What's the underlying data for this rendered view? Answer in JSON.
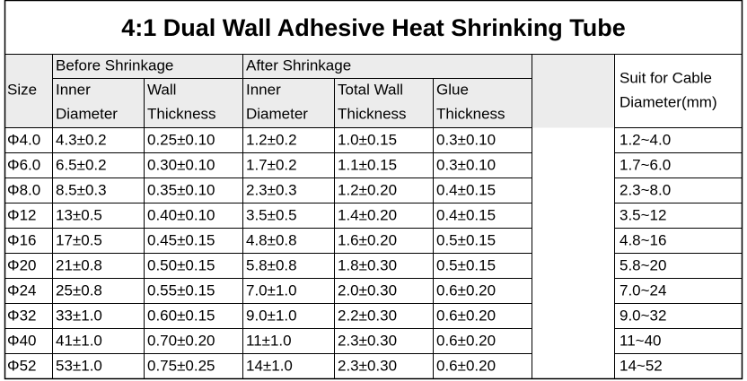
{
  "title": "4:1 Dual Wall Adhesive Heat Shrinking Tube",
  "header": {
    "size": "Size",
    "before": "Before Shrinkage",
    "after": "After Shrinkage",
    "columns": [
      [
        "Inner",
        "Diameter"
      ],
      [
        "Wall",
        "Thickness"
      ],
      [
        "Inner",
        "Diameter"
      ],
      [
        "Total Wall",
        "Thickness"
      ],
      [
        "Glue",
        "Thickness"
      ]
    ],
    "suit": [
      "Suit for Cable",
      "Diameter(mm)"
    ]
  },
  "rows": [
    [
      "Φ4.0",
      "4.3±0.2",
      "0.25±0.10",
      "1.2±0.2",
      "1.0±0.15",
      "0.3±0.10",
      "1.2~4.0"
    ],
    [
      "Φ6.0",
      "6.5±0.2",
      "0.30±0.10",
      "1.7±0.2",
      "1.1±0.15",
      "0.3±0.10",
      "1.7~6.0"
    ],
    [
      "Φ8.0",
      "8.5±0.3",
      "0.35±0.10",
      "2.3±0.3",
      "1.2±0.20",
      "0.4±0.15",
      "2.3~8.0"
    ],
    [
      "Φ12",
      "13±0.5",
      "0.40±0.10",
      "3.5±0.5",
      "1.4±0.20",
      "0.4±0.15",
      "3.5~12"
    ],
    [
      "Φ16",
      "17±0.5",
      "0.45±0.15",
      "4.8±0.8",
      "1.6±0.20",
      "0.5±0.15",
      "4.8~16"
    ],
    [
      "Φ20",
      "21±0.8",
      "0.50±0.15",
      "5.8±0.8",
      "1.8±0.30",
      "0.5±0.15",
      "5.8~20"
    ],
    [
      "Φ24",
      "25±0.8",
      "0.55±0.15",
      "7.0±1.0",
      "2.0±0.30",
      "0.6±0.20",
      "7.0~24"
    ],
    [
      "Φ32",
      "33±1.0",
      "0.60±0.15",
      "9.0±1.0",
      "2.2±0.30",
      "0.6±0.20",
      "9.0~32"
    ],
    [
      "Φ40",
      "41±1.0",
      "0.70±0.20",
      "11±1.0",
      "2.3±0.30",
      "0.6±0.20",
      "11~40"
    ],
    [
      "Φ52",
      "53±1.0",
      "0.75±0.25",
      "14±1.0",
      "2.3±0.30",
      "0.6±0.20",
      "14~52"
    ]
  ]
}
